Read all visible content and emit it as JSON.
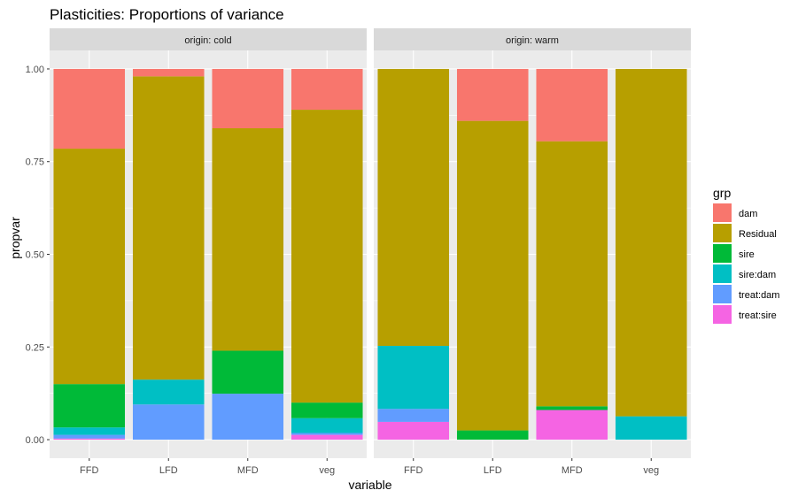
{
  "chart_data": {
    "type": "bar",
    "stacked": true,
    "title": "Plasticities: Proportions of variance",
    "xlabel": "variable",
    "ylabel": "propvar",
    "ylim": [
      0,
      1
    ],
    "yticks": [
      0.0,
      0.25,
      0.5,
      0.75,
      1.0
    ],
    "ytick_labels": [
      "0.00",
      "0.25",
      "0.50",
      "0.75",
      "1.00"
    ],
    "categories": [
      "FFD",
      "LFD",
      "MFD",
      "veg"
    ],
    "legend_title": "grp",
    "legend_position": "right",
    "groups": [
      {
        "name": "dam",
        "color": "#F8766D"
      },
      {
        "name": "Residual",
        "color": "#B79F00"
      },
      {
        "name": "sire",
        "color": "#00BA38"
      },
      {
        "name": "sire:dam",
        "color": "#00BFC4"
      },
      {
        "name": "treat:dam",
        "color": "#619CFF"
      },
      {
        "name": "treat:sire",
        "color": "#F564E3"
      }
    ],
    "stack_order_bottom_to_top": [
      "treat:sire",
      "treat:dam",
      "sire:dam",
      "sire",
      "Residual",
      "dam"
    ],
    "panels": [
      {
        "label": "origin: cold",
        "bars": [
          {
            "category": "FFD",
            "values": {
              "treat:sire": 0.003,
              "treat:dam": 0.01,
              "sire:dam": 0.02,
              "sire": 0.117,
              "Residual": 0.635,
              "dam": 0.215
            }
          },
          {
            "category": "LFD",
            "values": {
              "treat:sire": 0.0,
              "treat:dam": 0.095,
              "sire:dam": 0.067,
              "sire": 0.0,
              "Residual": 0.818,
              "dam": 0.02
            }
          },
          {
            "category": "MFD",
            "values": {
              "treat:sire": 0.0,
              "treat:dam": 0.124,
              "sire:dam": 0.0,
              "sire": 0.116,
              "Residual": 0.6,
              "dam": 0.16
            }
          },
          {
            "category": "veg",
            "values": {
              "treat:sire": 0.013,
              "treat:dam": 0.005,
              "sire:dam": 0.04,
              "sire": 0.042,
              "Residual": 0.79,
              "dam": 0.11
            }
          }
        ]
      },
      {
        "label": "origin: warm",
        "bars": [
          {
            "category": "FFD",
            "values": {
              "treat:sire": 0.048,
              "treat:dam": 0.035,
              "sire:dam": 0.17,
              "sire": 0.0,
              "Residual": 0.747,
              "dam": 0.0
            }
          },
          {
            "category": "LFD",
            "values": {
              "treat:sire": 0.0,
              "treat:dam": 0.0,
              "sire:dam": 0.0,
              "sire": 0.025,
              "Residual": 0.835,
              "dam": 0.14
            }
          },
          {
            "category": "MFD",
            "values": {
              "treat:sire": 0.08,
              "treat:dam": 0.0,
              "sire:dam": 0.0,
              "sire": 0.01,
              "Residual": 0.715,
              "dam": 0.195
            }
          },
          {
            "category": "veg",
            "values": {
              "treat:sire": 0.0,
              "treat:dam": 0.0,
              "sire:dam": 0.063,
              "sire": 0.0,
              "Residual": 0.937,
              "dam": 0.0
            }
          }
        ]
      }
    ]
  }
}
